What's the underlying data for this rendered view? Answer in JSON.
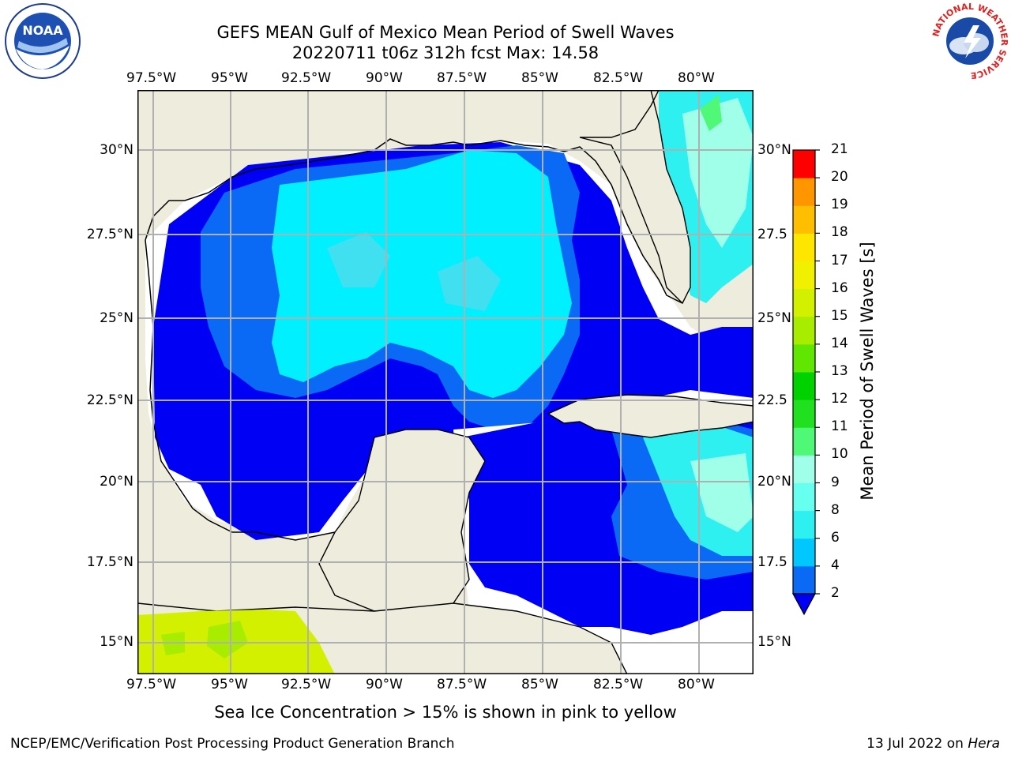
{
  "title": {
    "line1": "GEFS MEAN Gulf of Mexico Mean Period of Swell Waves",
    "line2": "20220711 t06z 312h fcst   Max: 14.58"
  },
  "logos": {
    "left": {
      "icon": "noaa-logo-icon",
      "text": "NOAA"
    },
    "right": {
      "icon": "nws-logo-icon",
      "ring_text": "NATIONAL WEATHER SERVICE"
    }
  },
  "map": {
    "lon_labels": [
      "97.5°W",
      "95°W",
      "92.5°W",
      "90°W",
      "87.5°W",
      "85°W",
      "82.5°W",
      "80°W"
    ],
    "lat_labels_left": [
      "30°N",
      "27.5°N",
      "25°N",
      "22.5°N",
      "20°N",
      "17.5°N",
      "15°N"
    ],
    "lat_labels_right": [
      "30°N",
      "27.5",
      "25°N",
      "22.5",
      "20°N",
      "17.5",
      "15°N"
    ],
    "colors": {
      "land": "#eeecdc",
      "water_missing": "#ffffff",
      "grid": "#b0b0b0",
      "coast": "#000000"
    }
  },
  "colorbar": {
    "label": "Mean Period of Swell Waves [s]",
    "ticks": [
      "2",
      "4",
      "6",
      "8",
      "9",
      "10",
      "11",
      "12",
      "13",
      "14",
      "15",
      "16",
      "17",
      "18",
      "19",
      "20",
      "21"
    ],
    "colors": [
      "#0a6af5",
      "#00c8ff",
      "#2ef0f0",
      "#66fff0",
      "#a0ffe8",
      "#50f878",
      "#20e020",
      "#00d200",
      "#60e600",
      "#a8ec00",
      "#d2f000",
      "#f0f000",
      "#ffe600",
      "#ffbe00",
      "#ff9600",
      "#ff6400",
      "#ff3200",
      "#ff0000"
    ],
    "extend_color": "#0000f5"
  },
  "caption": "Sea Ice Concentration > 15% is shown in pink to yellow",
  "footer": {
    "left": "NCEP/EMC/Verification Post Processing Product Generation Branch",
    "right_date": "13 Jul 2022 on ",
    "right_host": "Hera"
  }
}
